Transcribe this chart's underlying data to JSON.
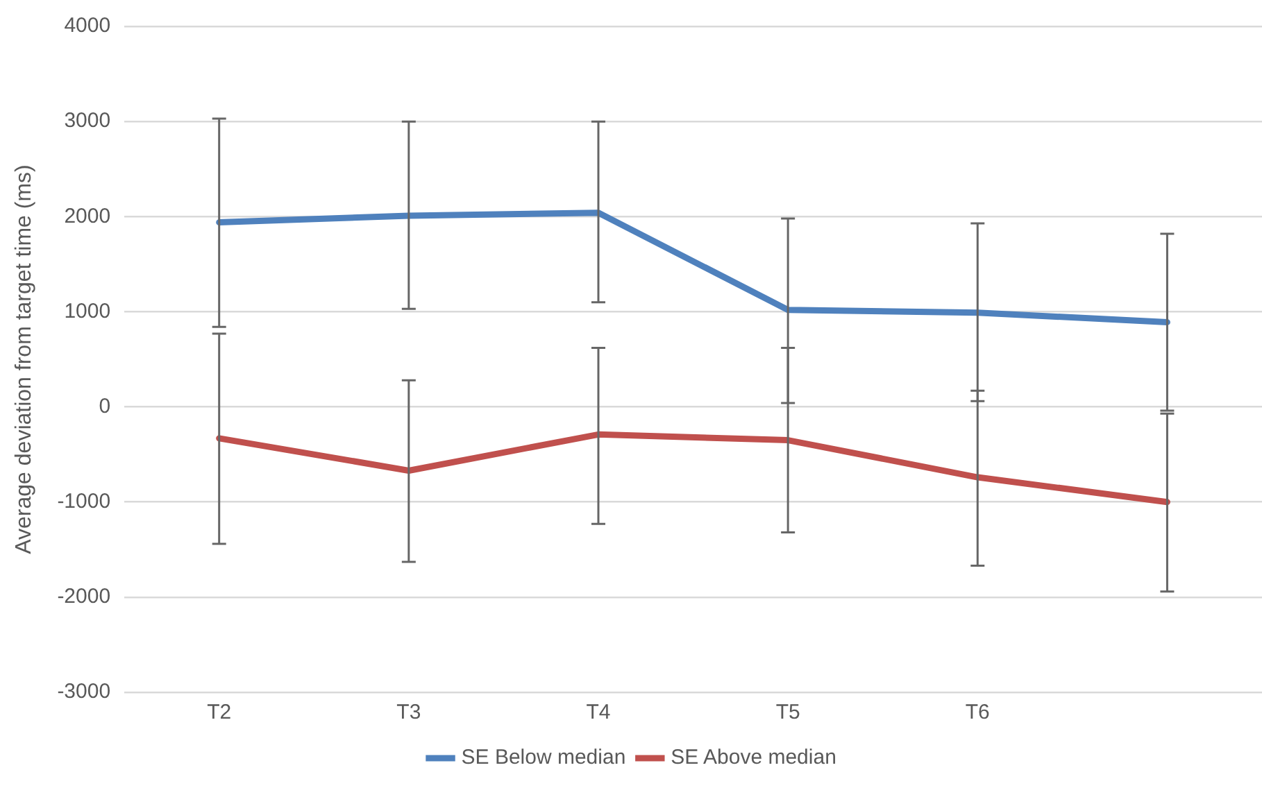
{
  "chart_data": {
    "type": "line",
    "ylabel": "Average deviation from target time (ms)",
    "categories": [
      "T2",
      "T3",
      "T4",
      "T5",
      "T6",
      null
    ],
    "series": [
      {
        "name": "SE Below median",
        "color": "#4f81bd",
        "values": [
          1940,
          2010,
          2040,
          1020,
          990,
          890
        ],
        "errors": [
          [
            840,
            3030
          ],
          [
            1030,
            3000
          ],
          [
            1100,
            3000
          ],
          [
            40,
            1980
          ],
          [
            60,
            1930
          ],
          [
            -40,
            1820
          ]
        ]
      },
      {
        "name": "SE Above median",
        "color": "#c0504d",
        "values": [
          -330,
          -670,
          -290,
          -350,
          -740,
          -1000
        ],
        "errors": [
          [
            -1440,
            770
          ],
          [
            -1630,
            280
          ],
          [
            -1230,
            620
          ],
          [
            -1320,
            620
          ],
          [
            -1670,
            170
          ],
          [
            -1940,
            -70
          ]
        ]
      }
    ],
    "ylim": [
      -3000,
      4000
    ],
    "yticks": [
      -3000,
      -2000,
      -1000,
      0,
      1000,
      2000,
      3000,
      4000
    ],
    "grid": "y",
    "legend": "bottom",
    "marker": "none",
    "line_style": "solid"
  }
}
